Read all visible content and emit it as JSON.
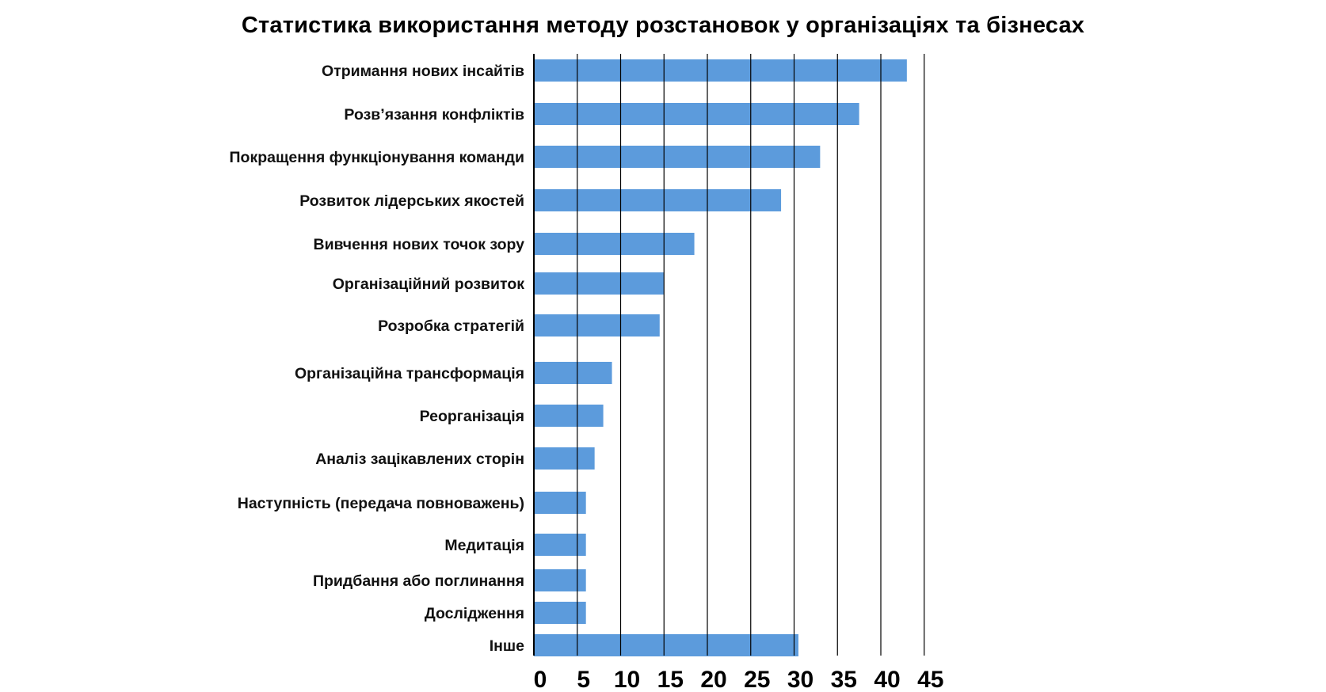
{
  "chart_data": {
    "type": "bar",
    "orientation": "horizontal",
    "title": "Статистика використання методу розстановок у організаціях та бізнесах",
    "categories": [
      "Отримання нових інсайтів",
      "Розв’язання конфліктів",
      "Покращення функціонування команди",
      "Розвиток лідерських якостей",
      "Вивчення нових точок зору",
      "Організаційний розвиток",
      "Розробка стратегій",
      "Організаційна трансформація",
      "Реорганізація",
      "Аналіз зацікавлених сторін",
      "Наступність (передача повноважень)",
      "Медитація",
      "Придбання або поглинання",
      "Дослідження",
      "Інше"
    ],
    "values": [
      43,
      37.5,
      33,
      28.5,
      18.5,
      15,
      14.5,
      9,
      8,
      7,
      6,
      6,
      6,
      6,
      30.5
    ],
    "xlim": [
      0,
      45
    ],
    "xticks": [
      "0",
      "5",
      "10",
      "15",
      "20",
      "25",
      "30",
      "35",
      "40",
      "45"
    ],
    "grid": true,
    "bar_color": "#5c9bdc"
  }
}
